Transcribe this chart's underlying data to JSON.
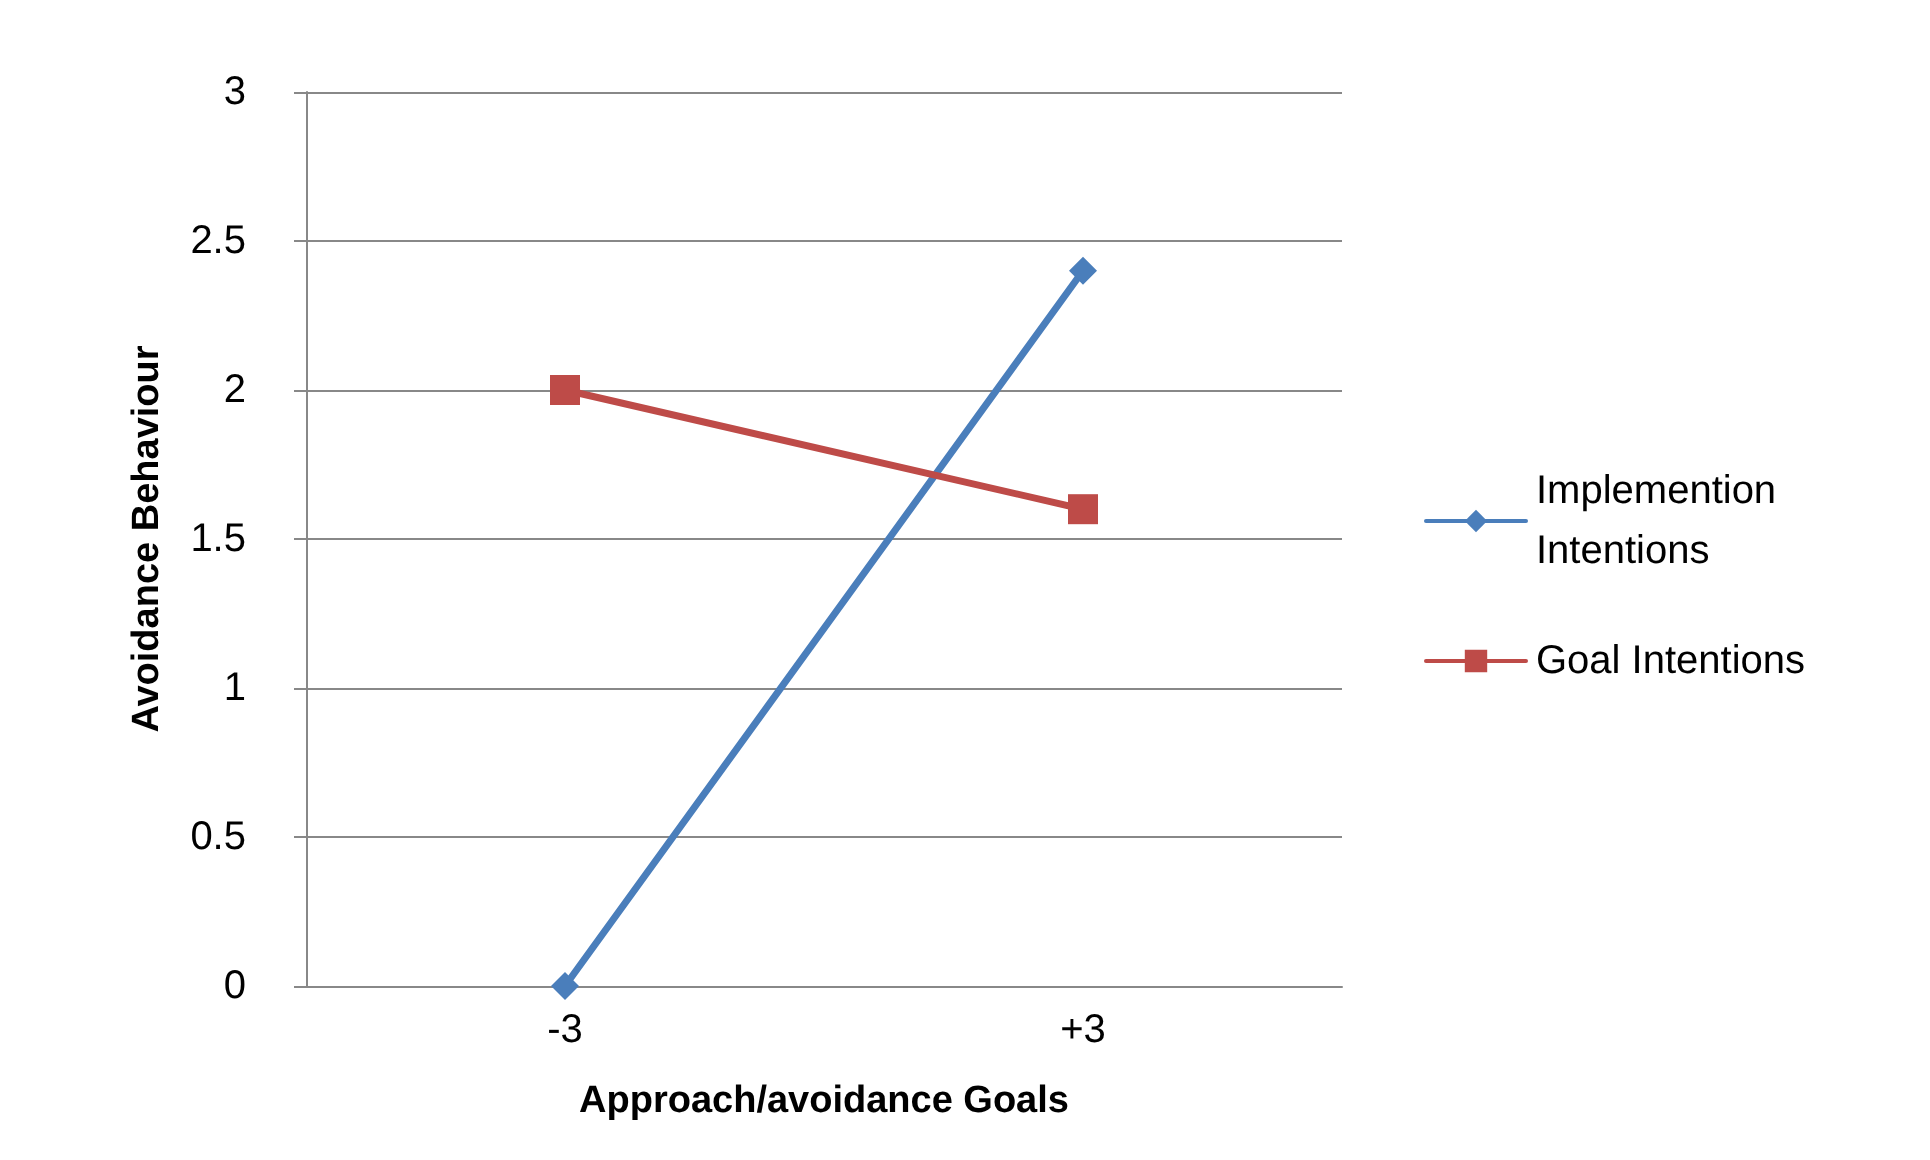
{
  "chart_data": {
    "type": "line",
    "xlabel": "Approach/avoidance Goals",
    "ylabel": "Avoidance Behaviour",
    "categories": [
      "-3",
      "+3"
    ],
    "series": [
      {
        "name": "Implemention Intentions",
        "color": "#4a7ebb",
        "values": [
          0,
          2.4
        ],
        "marker": "diamond"
      },
      {
        "name": "Goal Intentions",
        "color": "#be4b48",
        "values": [
          2,
          1.6
        ],
        "marker": "square"
      }
    ],
    "ylim": [
      0,
      3
    ],
    "yticks": [
      0,
      0.5,
      1,
      1.5,
      2,
      2.5,
      3
    ],
    "grid": "y",
    "legend": "right",
    "line_style": "solid"
  }
}
